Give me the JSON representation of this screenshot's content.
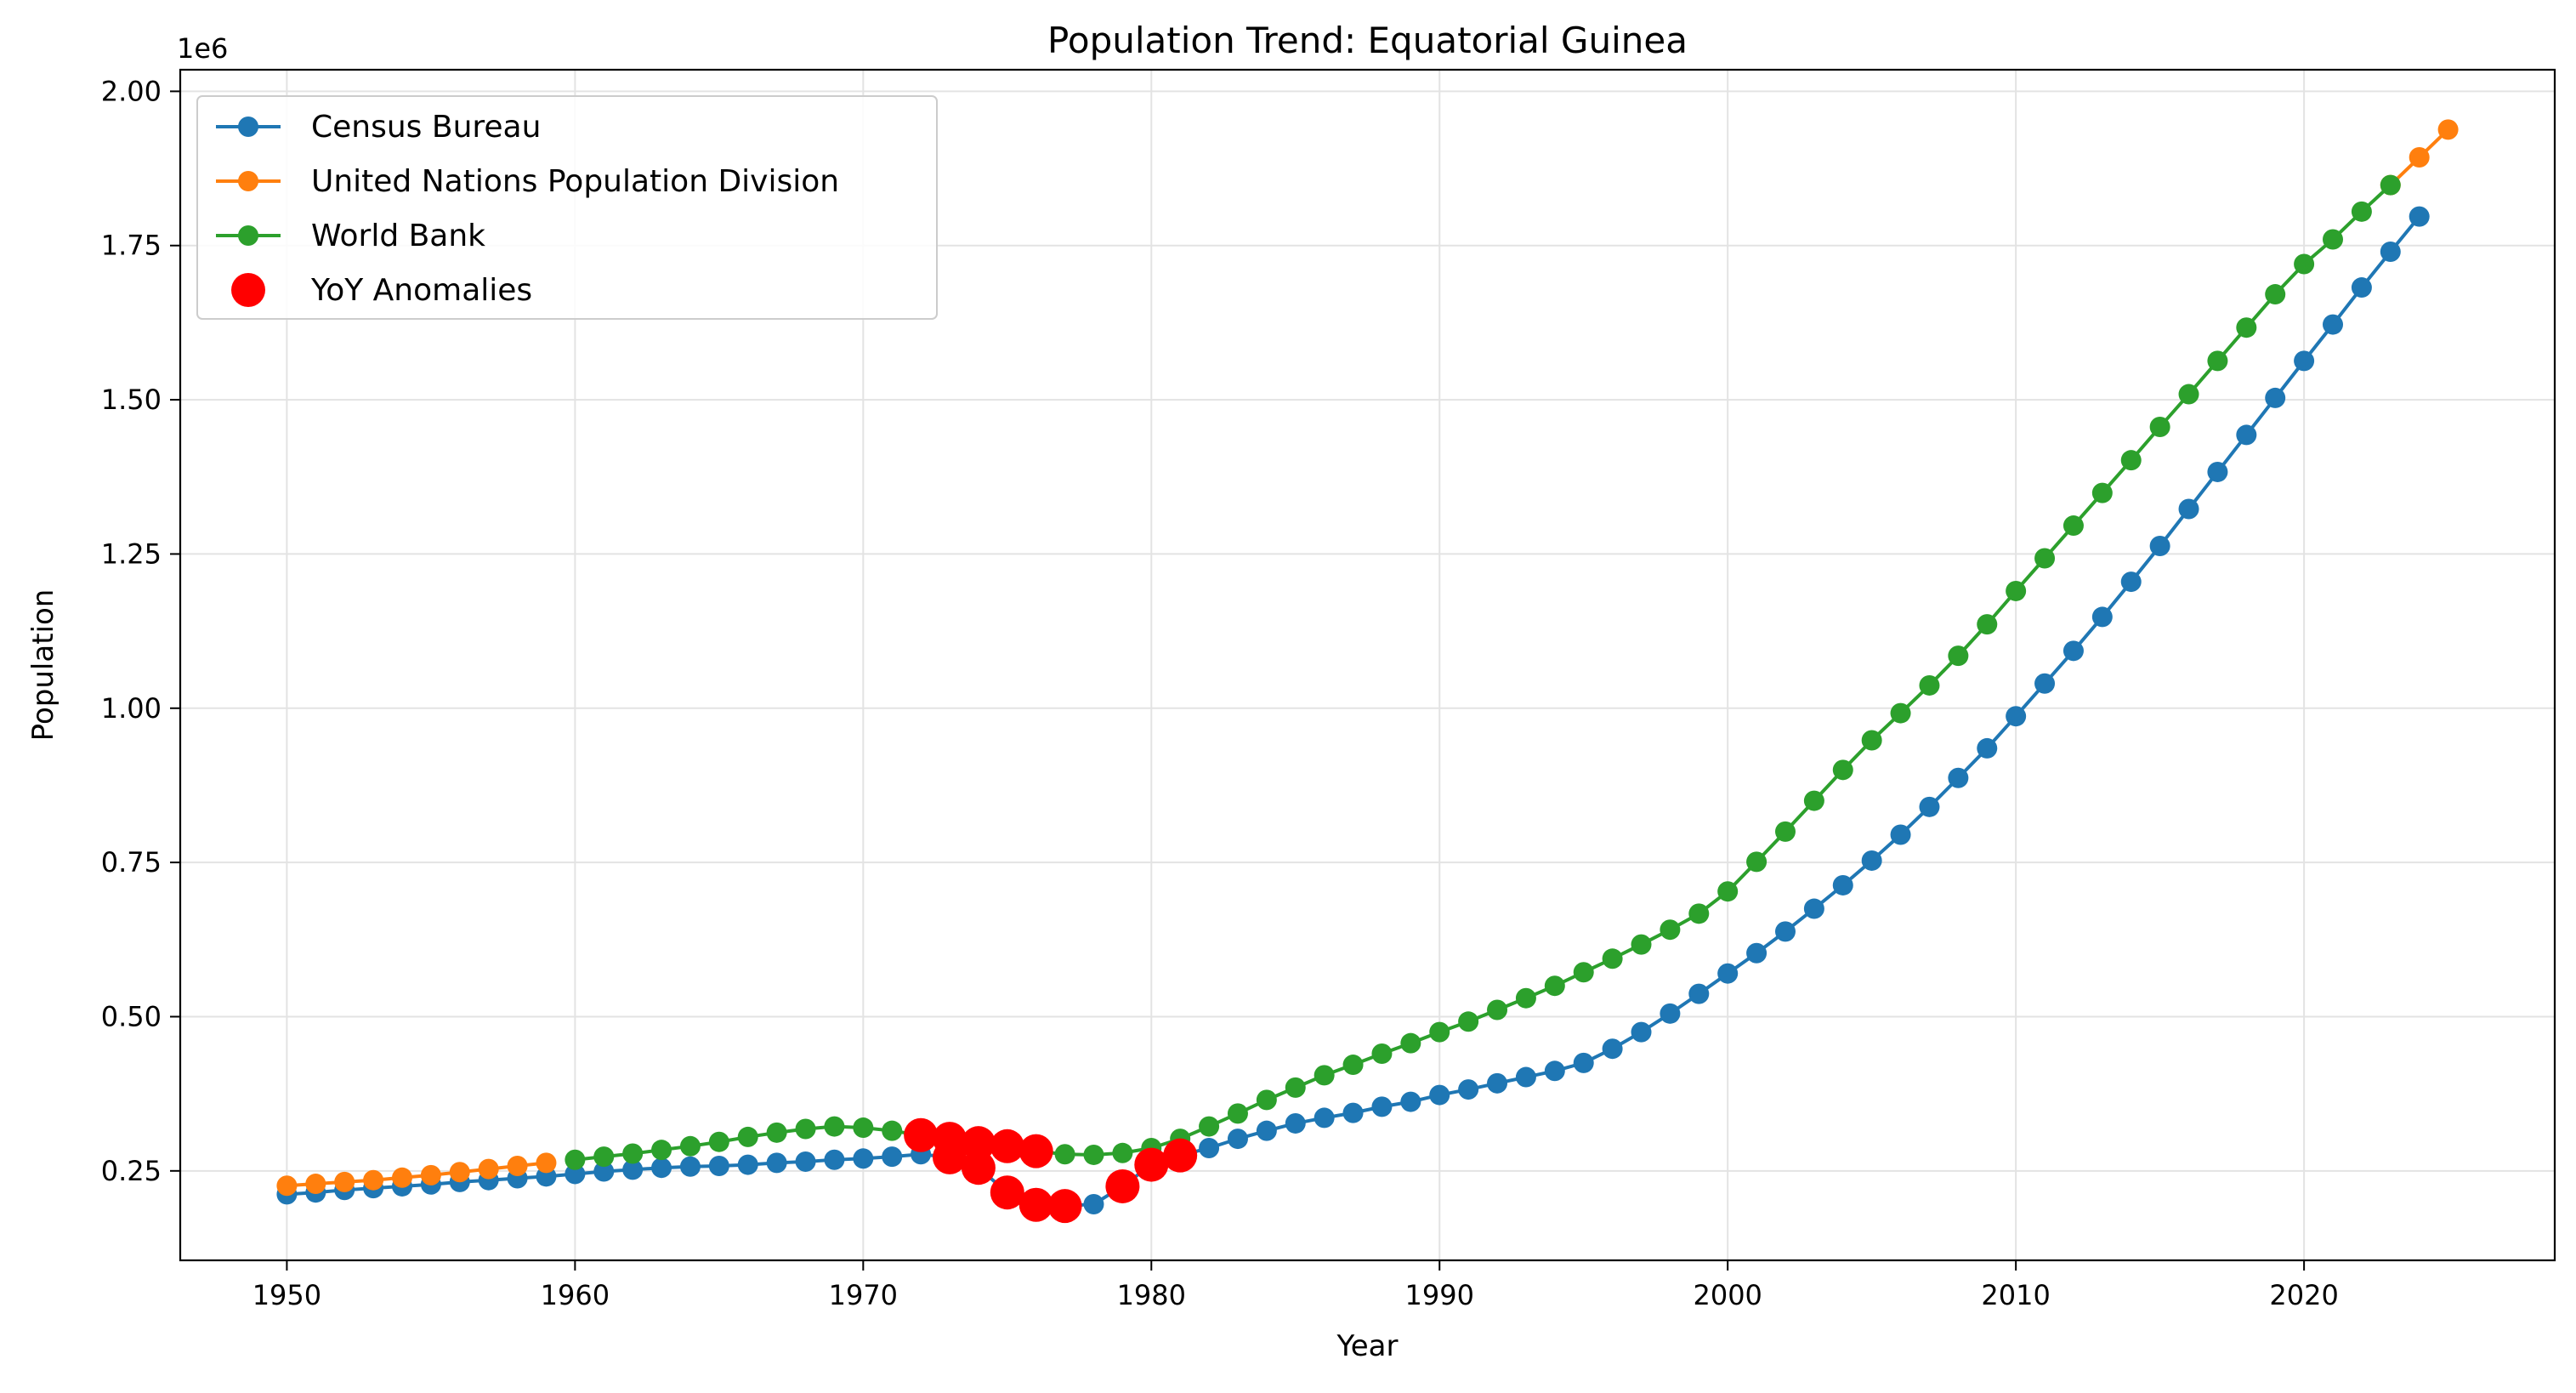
{
  "chart_data": {
    "type": "line",
    "title": "Population Trend: Equatorial Guinea",
    "xlabel": "Year",
    "ylabel": "Population",
    "y_scale_label": "1e6",
    "xlim": [
      1946.3,
      2028.7
    ],
    "ylim": [
      0.105,
      2.035
    ],
    "y_unit_multiplier": 1000000,
    "x_ticks": [
      1950,
      1960,
      1970,
      1980,
      1990,
      2000,
      2010,
      2020
    ],
    "y_ticks": [
      0.25,
      0.5,
      0.75,
      1.0,
      1.25,
      1.5,
      1.75,
      2.0
    ],
    "y_tick_labels": [
      "0.25",
      "0.50",
      "0.75",
      "1.00",
      "1.25",
      "1.50",
      "1.75",
      "2.00"
    ],
    "grid": true,
    "legend_position": "upper-left",
    "series": [
      {
        "name": "Census Bureau",
        "color": "#1f77b4",
        "marker": "circle",
        "x": [
          1950,
          1951,
          1952,
          1953,
          1954,
          1955,
          1956,
          1957,
          1958,
          1959,
          1960,
          1961,
          1962,
          1963,
          1964,
          1965,
          1966,
          1967,
          1968,
          1969,
          1970,
          1971,
          1972,
          1973,
          1974,
          1975,
          1976,
          1977,
          1978,
          1979,
          1980,
          1981,
          1982,
          1983,
          1984,
          1985,
          1986,
          1987,
          1988,
          1989,
          1990,
          1991,
          1992,
          1993,
          1994,
          1995,
          1996,
          1997,
          1998,
          1999,
          2000,
          2001,
          2002,
          2003,
          2004,
          2005,
          2006,
          2007,
          2008,
          2009,
          2010,
          2011,
          2012,
          2013,
          2014,
          2015,
          2016,
          2017,
          2018,
          2019,
          2020,
          2021,
          2022,
          2023,
          2024
        ],
        "y": [
          0.212,
          0.215,
          0.219,
          0.222,
          0.225,
          0.228,
          0.232,
          0.235,
          0.238,
          0.241,
          0.245,
          0.249,
          0.252,
          0.255,
          0.257,
          0.258,
          0.26,
          0.263,
          0.265,
          0.268,
          0.27,
          0.273,
          0.277,
          0.272,
          0.255,
          0.215,
          0.195,
          0.193,
          0.196,
          0.225,
          0.26,
          0.275,
          0.287,
          0.302,
          0.315,
          0.327,
          0.336,
          0.344,
          0.354,
          0.362,
          0.373,
          0.382,
          0.392,
          0.402,
          0.412,
          0.425,
          0.448,
          0.475,
          0.505,
          0.537,
          0.57,
          0.603,
          0.638,
          0.675,
          0.713,
          0.753,
          0.795,
          0.84,
          0.887,
          0.935,
          0.987,
          1.04,
          1.093,
          1.148,
          1.205,
          1.263,
          1.323,
          1.383,
          1.443,
          1.503,
          1.563,
          1.622,
          1.682,
          1.74,
          1.797
        ]
      },
      {
        "name": "United Nations Population Division",
        "color": "#ff7f0e",
        "marker": "circle",
        "x": [
          1950,
          1951,
          1952,
          1953,
          1954,
          1955,
          1956,
          1957,
          1958,
          1959,
          2023,
          2024,
          2025
        ],
        "y": [
          0.226,
          0.229,
          0.232,
          0.235,
          0.239,
          0.243,
          0.248,
          0.253,
          0.258,
          0.263,
          1.848,
          1.893,
          1.938
        ]
      },
      {
        "name": "World Bank",
        "color": "#2ca02c",
        "marker": "circle",
        "x": [
          1960,
          1961,
          1962,
          1963,
          1964,
          1965,
          1966,
          1967,
          1968,
          1969,
          1970,
          1971,
          1972,
          1973,
          1974,
          1975,
          1976,
          1977,
          1978,
          1979,
          1980,
          1981,
          1982,
          1983,
          1984,
          1985,
          1986,
          1987,
          1988,
          1989,
          1990,
          1991,
          1992,
          1993,
          1994,
          1995,
          1996,
          1997,
          1998,
          1999,
          2000,
          2001,
          2002,
          2003,
          2004,
          2005,
          2006,
          2007,
          2008,
          2009,
          2010,
          2011,
          2012,
          2013,
          2014,
          2015,
          2016,
          2017,
          2018,
          2019,
          2020,
          2021,
          2022,
          2023
        ],
        "y": [
          0.268,
          0.273,
          0.278,
          0.284,
          0.29,
          0.297,
          0.305,
          0.312,
          0.318,
          0.322,
          0.32,
          0.315,
          0.308,
          0.302,
          0.295,
          0.29,
          0.282,
          0.277,
          0.276,
          0.279,
          0.287,
          0.302,
          0.322,
          0.343,
          0.365,
          0.385,
          0.405,
          0.422,
          0.44,
          0.457,
          0.475,
          0.492,
          0.511,
          0.53,
          0.55,
          0.572,
          0.594,
          0.617,
          0.641,
          0.667,
          0.703,
          0.751,
          0.8,
          0.85,
          0.9,
          0.948,
          0.992,
          1.037,
          1.085,
          1.136,
          1.19,
          1.243,
          1.296,
          1.349,
          1.402,
          1.456,
          1.509,
          1.563,
          1.617,
          1.671,
          1.72,
          1.76,
          1.805,
          1.848
        ]
      },
      {
        "name": "YoY Anomalies",
        "color": "#ff0000",
        "marker": "circle-large",
        "x": [
          1972,
          1973,
          1973,
          1974,
          1974,
          1975,
          1975,
          1976,
          1976,
          1977,
          1979,
          1980,
          1981
        ],
        "y": [
          0.308,
          0.302,
          0.272,
          0.295,
          0.255,
          0.29,
          0.215,
          0.282,
          0.195,
          0.193,
          0.225,
          0.26,
          0.275
        ]
      }
    ]
  }
}
